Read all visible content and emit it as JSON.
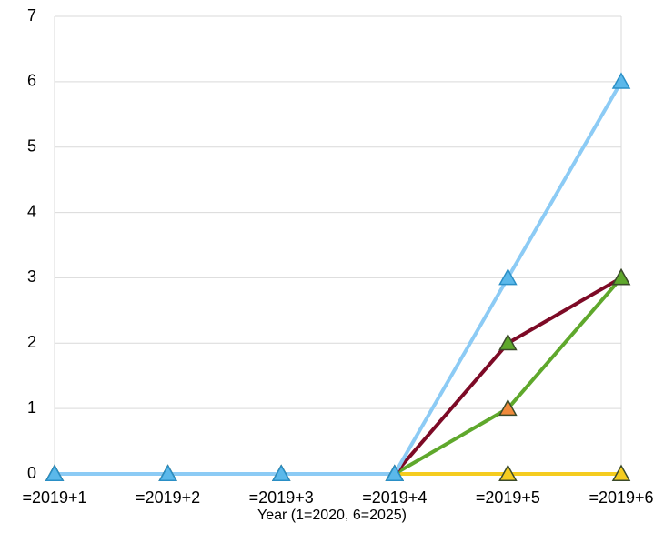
{
  "chart_data": {
    "type": "line",
    "x_label": "Year   (1=2020, 6=2025)",
    "categories": [
      "=2019+1",
      "=2019+2",
      "=2019+3",
      "=2019+4",
      "=2019+5",
      "=2019+6"
    ],
    "series": [
      {
        "color": "#f5cc1f",
        "marker_color": "#f5cc1f",
        "values": [
          0,
          0,
          0,
          0,
          0,
          0
        ]
      },
      {
        "color": "#5fa82c",
        "marker_color": "#f08a3c",
        "values": [
          0,
          0,
          0,
          0,
          1,
          3
        ]
      },
      {
        "color": "#7d0a26",
        "marker_color": "#5fa82c",
        "values": [
          0,
          0,
          0,
          0,
          2,
          3
        ]
      },
      {
        "color": "#8ccbf5",
        "marker_color": "#5bb8ea",
        "values": [
          0,
          0,
          0,
          0,
          3,
          6
        ]
      }
    ],
    "ylim": [
      0,
      7
    ],
    "yticks": [
      0,
      1,
      2,
      3,
      4,
      5,
      6,
      7
    ],
    "grid": true
  }
}
